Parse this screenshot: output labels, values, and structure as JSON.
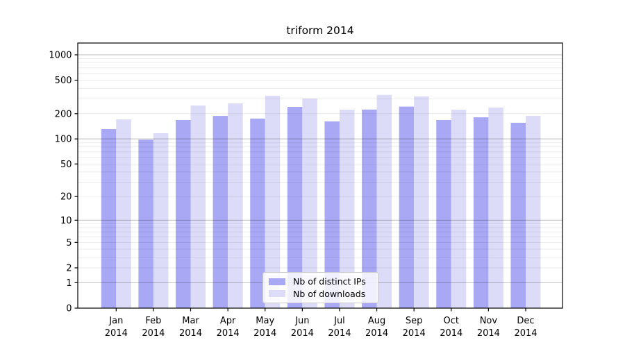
{
  "figure_title": "triform 2014",
  "chart_data": {
    "type": "bar",
    "title": "triform 2014",
    "scale": "log1p",
    "grid": true,
    "legend_position": "lower center",
    "categories": [
      "Jan",
      "Feb",
      "Mar",
      "Apr",
      "May",
      "Jun",
      "Jul",
      "Aug",
      "Sep",
      "Oct",
      "Nov",
      "Dec"
    ],
    "year_label": "2014",
    "series": [
      {
        "key": "distinct-ips",
        "name": "Nb of distinct IPs",
        "color": "#a8a8f5",
        "values": [
          131,
          98,
          168,
          188,
          175,
          241,
          162,
          224,
          243,
          168,
          181,
          156
        ]
      },
      {
        "key": "downloads",
        "name": "Nb of downloads",
        "color": "#dcdcf8",
        "values": [
          171,
          117,
          250,
          265,
          327,
          303,
          223,
          335,
          321,
          223,
          237,
          188
        ]
      }
    ],
    "yticks": [
      0,
      1,
      2,
      5,
      10,
      20,
      50,
      100,
      200,
      500,
      1000
    ],
    "ylim": [
      0,
      1380
    ],
    "major_gridlines": [
      1,
      10,
      100,
      1000
    ],
    "colors": {
      "major_grid": "rgba(0,0,0,0.25)",
      "minor_grid": "rgba(0,0,0,0.09)",
      "spine": "#000000"
    }
  }
}
